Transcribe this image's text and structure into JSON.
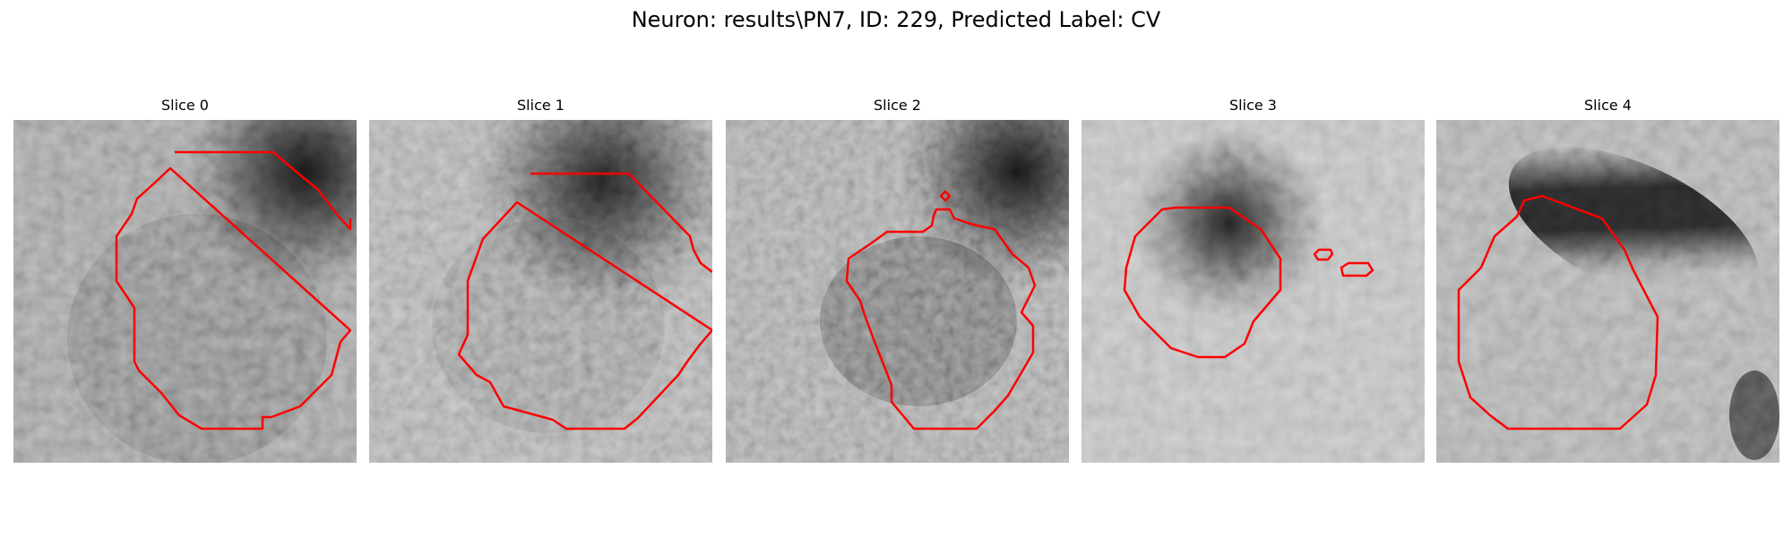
{
  "figure": {
    "title": "Neuron: results\\PN7, ID: 229, Predicted Label: CV"
  },
  "panels": [
    {
      "title": "Slice 0"
    },
    {
      "title": "Slice 1"
    },
    {
      "title": "Slice 2"
    },
    {
      "title": "Slice 3"
    },
    {
      "title": "Slice 4"
    }
  ],
  "colors": {
    "contour": "#ff0000",
    "background": "#ffffff"
  },
  "colormap": "grayscale"
}
